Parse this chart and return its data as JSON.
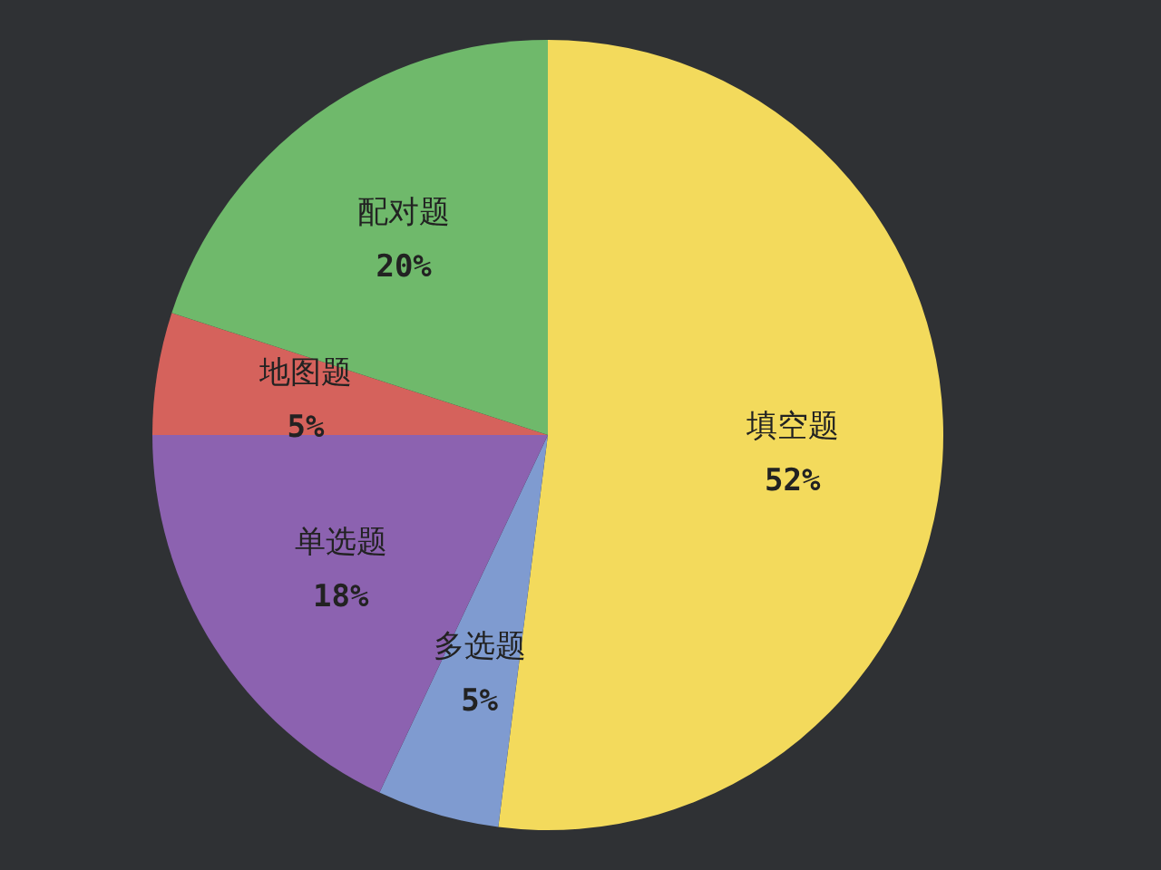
{
  "chart_data": {
    "type": "pie",
    "categories": [
      "填空题",
      "多选题",
      "单选题",
      "地图题",
      "配对题"
    ],
    "values": [
      52,
      5,
      18,
      5,
      20
    ],
    "value_labels": [
      "52%",
      "5%",
      "18%",
      "5%",
      "20%"
    ],
    "colors": [
      "#f3da5c",
      "#7f9bd0",
      "#8c62b0",
      "#d5625c",
      "#6fb96b"
    ]
  }
}
